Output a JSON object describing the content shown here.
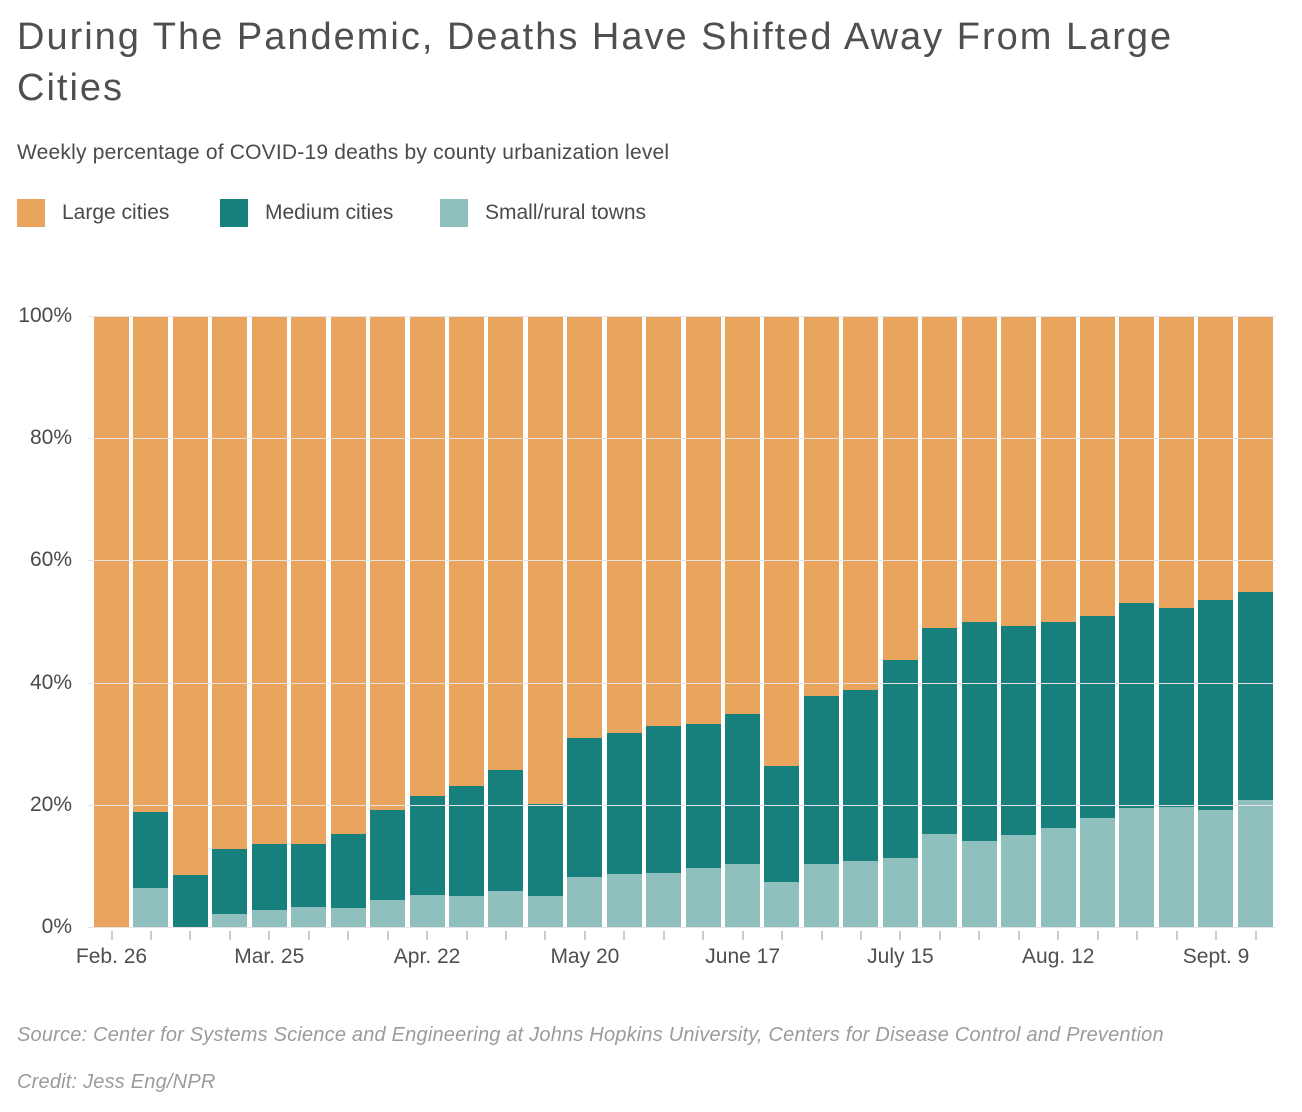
{
  "title": "During The Pandemic, Deaths Have Shifted Away From Large Cities",
  "subtitle": "Weekly percentage of COVID-19 deaths by county urbanization level",
  "legend": [
    {
      "label": "Large cities",
      "color": "#E9A55E"
    },
    {
      "label": "Medium cities",
      "color": "#17807C"
    },
    {
      "label": "Small/rural towns",
      "color": "#8FC0BD"
    }
  ],
  "footer": {
    "source": "Source: Center for Systems Science and Engineering at Johns Hopkins University, Centers for Disease Control and Prevention",
    "credit": "Credit: Jess Eng/NPR"
  },
  "chart_data": {
    "type": "bar",
    "stacked": true,
    "orientation": "vertical",
    "unit": "percent",
    "n_bars": 30,
    "bar_interval": "weekly",
    "ylim": [
      0,
      100
    ],
    "grid": true,
    "legend_position": "top-left",
    "y_axis": {
      "ticks": [
        "100%",
        "80%",
        "60%",
        "40%",
        "20%",
        "0%"
      ]
    },
    "x_ticks": [
      {
        "bar": 1,
        "label": "Feb. 26"
      },
      {
        "bar": 5,
        "label": "Mar. 25"
      },
      {
        "bar": 9,
        "label": "Apr. 22"
      },
      {
        "bar": 13,
        "label": "May 20"
      },
      {
        "bar": 17,
        "label": "June 17"
      },
      {
        "bar": 21,
        "label": "July 15"
      },
      {
        "bar": 25,
        "label": "Aug. 12"
      },
      {
        "bar": 29,
        "label": "Sept. 9"
      }
    ],
    "series": [
      {
        "name": "Large cities",
        "color": "#E9A55E",
        "values": [
          100,
          81.2,
          91.5,
          87.3,
          86.4,
          86.4,
          84.8,
          80.9,
          78.6,
          76.9,
          74.3,
          79.9,
          69.1,
          68.3,
          67.1,
          66.8,
          65.1,
          73.7,
          62.2,
          61.2,
          56.3,
          51.1,
          50.0,
          50.7,
          50.1,
          49.1,
          46.9,
          47.8,
          46.5,
          45.1
        ]
      },
      {
        "name": "Medium cities",
        "color": "#17807C",
        "values": [
          0,
          12.4,
          8.5,
          10.5,
          10.9,
          10.3,
          12.1,
          14.6,
          16.2,
          18.0,
          19.8,
          15.1,
          22.8,
          23.0,
          24.0,
          23.6,
          24.6,
          18.9,
          27.5,
          28.0,
          32.4,
          33.7,
          36.0,
          34.3,
          33.7,
          33.1,
          33.7,
          32.6,
          34.4,
          34.1
        ]
      },
      {
        "name": "Small/rural towns",
        "color": "#8FC0BD",
        "values": [
          0,
          6.4,
          0,
          2.2,
          2.7,
          3.3,
          3.1,
          4.5,
          5.2,
          5.1,
          5.9,
          5.0,
          8.1,
          8.7,
          8.9,
          9.6,
          10.3,
          7.4,
          10.3,
          10.8,
          11.3,
          15.2,
          14.0,
          15.0,
          16.2,
          17.8,
          19.4,
          19.6,
          19.1,
          20.8
        ]
      }
    ]
  }
}
